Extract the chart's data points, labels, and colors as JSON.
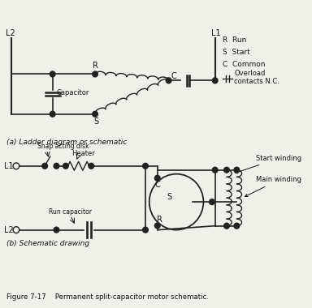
{
  "title": "Figure 7-17    Permanent split-capacitor motor schematic.",
  "bg_color": "#f0f0eb",
  "line_color": "#222222",
  "text_color": "#111111",
  "fig_width": 3.84,
  "fig_height": 3.8,
  "label_a": "(a) Ladder diagram or schematic",
  "label_b": "(b) Schematic drawing"
}
